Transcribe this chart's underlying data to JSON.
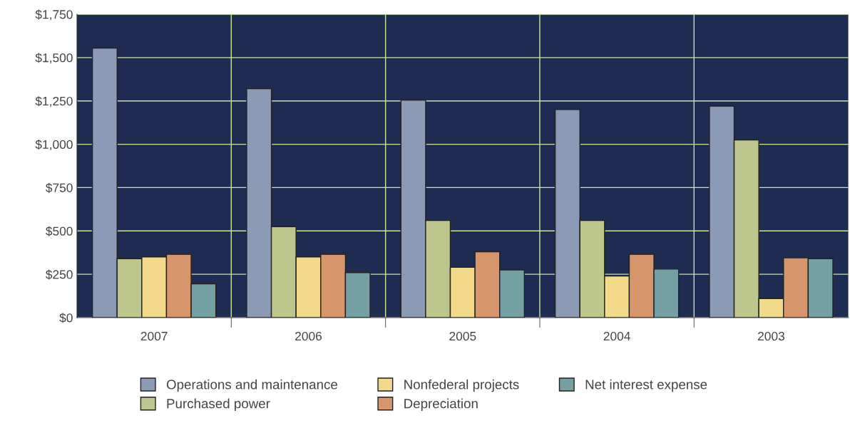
{
  "chart_data": {
    "type": "bar",
    "categories": [
      "2007",
      "2006",
      "2005",
      "2004",
      "2003"
    ],
    "series": [
      {
        "name": "Operations and maintenance",
        "color": "#8c9bb5",
        "values": [
          1555,
          1320,
          1255,
          1200,
          1220
        ]
      },
      {
        "name": "Purchased power",
        "color": "#bdc78d",
        "values": [
          340,
          525,
          560,
          560,
          1025
        ]
      },
      {
        "name": "Nonfederal projects",
        "color": "#f3d98a",
        "values": [
          350,
          350,
          290,
          240,
          110
        ]
      },
      {
        "name": "Depreciation",
        "color": "#d6956a",
        "values": [
          365,
          365,
          380,
          365,
          345
        ]
      },
      {
        "name": "Net interest expense",
        "color": "#75a0a3",
        "values": [
          195,
          260,
          275,
          280,
          340
        ]
      }
    ],
    "ylim": [
      0,
      1750
    ],
    "yticks": [
      {
        "value": 0,
        "label": "$0"
      },
      {
        "value": 250,
        "label": "$250"
      },
      {
        "value": 500,
        "label": "$500"
      },
      {
        "value": 750,
        "label": "$750"
      },
      {
        "value": 1000,
        "label": "$1,000"
      },
      {
        "value": 1250,
        "label": "$1,250"
      },
      {
        "value": 1500,
        "label": "$1,500"
      },
      {
        "value": 1750,
        "label": "$1,750"
      }
    ],
    "grid": true,
    "legend": "bottom"
  }
}
